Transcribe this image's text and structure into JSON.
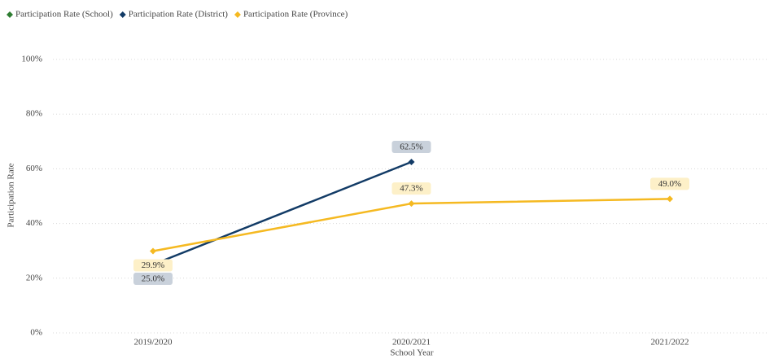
{
  "chart_data": {
    "type": "line",
    "x_label": "School Year",
    "y_label": "Participation Rate",
    "categories": [
      "2019/2020",
      "2020/2021",
      "2021/2022"
    ],
    "series": [
      {
        "name": "Participation Rate (School)",
        "color": "#2e7d32",
        "values": [
          null,
          null,
          null
        ]
      },
      {
        "name": "Participation Rate (District)",
        "color": "#123b66",
        "values": [
          25.0,
          62.5,
          null
        ],
        "value_labels": [
          "25.0%",
          "62.5%",
          null
        ]
      },
      {
        "name": "Participation Rate (Province)",
        "color": "#f5b921",
        "values": [
          29.9,
          47.3,
          49.0
        ],
        "value_labels": [
          "29.9%",
          "47.3%",
          "49.0%"
        ]
      }
    ],
    "ylim": [
      0,
      100
    ],
    "yticks": [
      {
        "value": 0,
        "label": "0%"
      },
      {
        "value": 20,
        "label": "20%"
      },
      {
        "value": 40,
        "label": "40%"
      },
      {
        "value": 60,
        "label": "60%"
      },
      {
        "value": 80,
        "label": "80%"
      },
      {
        "value": 100,
        "label": "100%"
      }
    ],
    "grid": true,
    "legend": "top-left"
  }
}
